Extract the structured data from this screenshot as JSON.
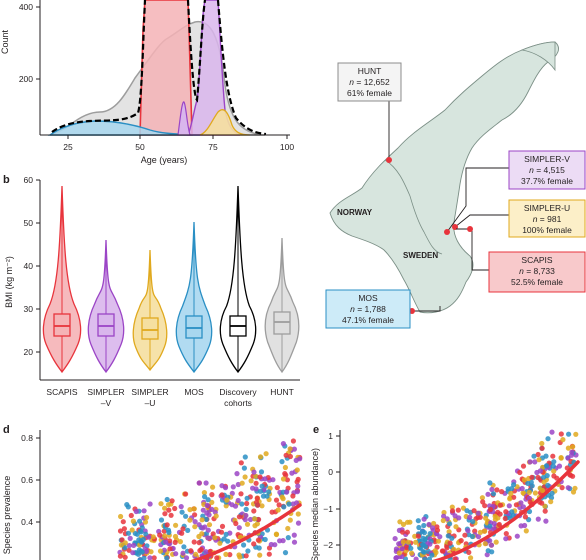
{
  "panel_a": {
    "ylabel": "Count",
    "xlabel": "Age (years)",
    "y_ticks": [
      "200",
      "400"
    ],
    "x_ticks": [
      "25",
      "50",
      "75",
      "100"
    ]
  },
  "panel_b": {
    "letter": "b",
    "ylabel": "BMI (kg m⁻²)",
    "y_ticks": [
      "20",
      "30",
      "40",
      "50",
      "60"
    ],
    "categories": [
      {
        "line1": "SCAPIS",
        "line2": "",
        "color": "#e8343c",
        "fill": "#f5b3b6"
      },
      {
        "line1": "SIMPLER",
        "line2": "–V",
        "color": "#9b45c6",
        "fill": "#d9b6ec"
      },
      {
        "line1": "SIMPLER",
        "line2": "–U",
        "color": "#e0a91e",
        "fill": "#f5dfa0"
      },
      {
        "line1": "MOS",
        "line2": "",
        "color": "#2a8fc4",
        "fill": "#a8d7ef"
      },
      {
        "line1": "Discovery",
        "line2": "cohorts",
        "color": "#000000",
        "fill": "#ffffff"
      },
      {
        "line1": "HUNT",
        "line2": "",
        "color": "#9d9d9d",
        "fill": "#dedede"
      }
    ]
  },
  "map": {
    "norway": "NORWAY",
    "sweden": "SWEDEN",
    "cohorts": [
      {
        "name": "HUNT",
        "n": "n = 12,652",
        "female": "61% female",
        "fill": "#f4f4f4",
        "border": "#8c8c8c"
      },
      {
        "name": "SIMPLER-V",
        "n": "n = 4,515",
        "female": "37.7% female",
        "fill": "#ecdcf5",
        "border": "#9b45c6"
      },
      {
        "name": "SIMPLER-U",
        "n": "n = 981",
        "female": "100% female",
        "fill": "#fcefc8",
        "border": "#e0a91e"
      },
      {
        "name": "SCAPIS",
        "n": "n = 8,733",
        "female": "52.5% female",
        "fill": "#f8c9cb",
        "border": "#e8343c"
      },
      {
        "name": "MOS",
        "n": "n = 1,788",
        "female": "47.1% female",
        "fill": "#cdebf8",
        "border": "#2a8fc4"
      }
    ]
  },
  "panel_d": {
    "letter": "d",
    "ylabel": "Species prevalence",
    "y_ticks": [
      "0.4",
      "0.6",
      "0.8"
    ]
  },
  "panel_e": {
    "letter": "e",
    "ylabel": "Species median abundance)",
    "y_ticks": [
      "−2",
      "−1",
      "0",
      "1"
    ]
  }
}
